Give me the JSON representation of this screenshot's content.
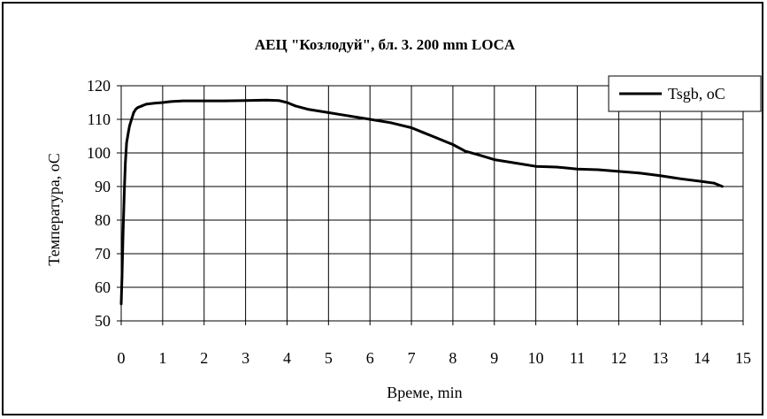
{
  "chart_data": {
    "type": "line",
    "title": "АЕЦ \"Козлодуй\", бл. 3. 200 mm LOCA",
    "xlabel": "Време, min",
    "ylabel": "Температура, оС",
    "xlim": [
      0,
      15
    ],
    "ylim": [
      50,
      120
    ],
    "xticks": [
      "0",
      "1",
      "2",
      "3",
      "4",
      "5",
      "6",
      "7",
      "8",
      "9",
      "10",
      "11",
      "12",
      "13",
      "14",
      "15"
    ],
    "yticks": [
      "50",
      "60",
      "70",
      "80",
      "90",
      "100",
      "110",
      "120"
    ],
    "grid": true,
    "legend_position": "top-right",
    "series": [
      {
        "name": "Tsgb, oC",
        "color": "#000000",
        "x": [
          0.0,
          0.02,
          0.05,
          0.08,
          0.1,
          0.13,
          0.17,
          0.2,
          0.25,
          0.3,
          0.35,
          0.4,
          0.5,
          0.6,
          0.8,
          1.0,
          1.2,
          1.5,
          2.0,
          2.5,
          3.0,
          3.5,
          3.8,
          4.0,
          4.2,
          4.5,
          5.0,
          5.5,
          6.0,
          6.5,
          7.0,
          7.3,
          7.6,
          8.0,
          8.3,
          8.6,
          9.0,
          9.5,
          10.0,
          10.5,
          11.0,
          11.5,
          12.0,
          12.5,
          13.0,
          13.5,
          14.0,
          14.3,
          14.5
        ],
        "values": [
          55,
          63,
          78,
          90,
          97,
          103,
          106,
          108,
          110,
          112,
          113,
          113.5,
          114,
          114.5,
          114.8,
          115,
          115.3,
          115.5,
          115.5,
          115.5,
          115.6,
          115.7,
          115.6,
          115,
          114,
          113,
          112,
          111,
          110,
          109,
          107.5,
          106,
          104.5,
          102.5,
          100.5,
          99.5,
          98,
          97,
          96,
          95.8,
          95.2,
          95,
          94.5,
          94,
          93.2,
          92.3,
          91.5,
          91,
          90
        ]
      }
    ]
  }
}
